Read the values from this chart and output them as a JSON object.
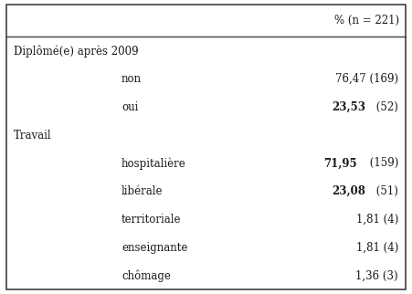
{
  "header_col": "% (n = 221)",
  "rows": [
    {
      "label": "Diplômé(e) après 2009",
      "value": "",
      "bold_part": "",
      "normal_part": "",
      "indent": 0,
      "is_section": true
    },
    {
      "label": "non",
      "value": "76,47 (169)",
      "bold_part": "",
      "normal_part": "76,47 (169)",
      "indent": 1,
      "is_section": false
    },
    {
      "label": "oui",
      "value": "23,53 (52)",
      "bold_part": "23,53",
      "normal_part": " (52)",
      "indent": 1,
      "is_section": false
    },
    {
      "label": "Travail",
      "value": "",
      "bold_part": "",
      "normal_part": "",
      "indent": 0,
      "is_section": true
    },
    {
      "label": "hospitalière",
      "value": "71,95 (159)",
      "bold_part": "71,95",
      "normal_part": " (159)",
      "indent": 1,
      "is_section": false
    },
    {
      "label": "libérale",
      "value": "23,08 (51)",
      "bold_part": "23,08",
      "normal_part": " (51)",
      "indent": 1,
      "is_section": false
    },
    {
      "label": "territoriale",
      "value": "1,81 (4)",
      "bold_part": "",
      "normal_part": "1,81 (4)",
      "indent": 1,
      "is_section": false
    },
    {
      "label": "enseignante",
      "value": "1,81 (4)",
      "bold_part": "",
      "normal_part": "1,81 (4)",
      "indent": 1,
      "is_section": false
    },
    {
      "label": "chômage",
      "value": "1,36 (3)",
      "bold_part": "",
      "normal_part": "1,36 (3)",
      "indent": 1,
      "is_section": false
    }
  ],
  "bg_color": "#ffffff",
  "text_color": "#1a1a1a",
  "border_color": "#404040",
  "font_size": 8.5,
  "header_font_size": 8.5
}
